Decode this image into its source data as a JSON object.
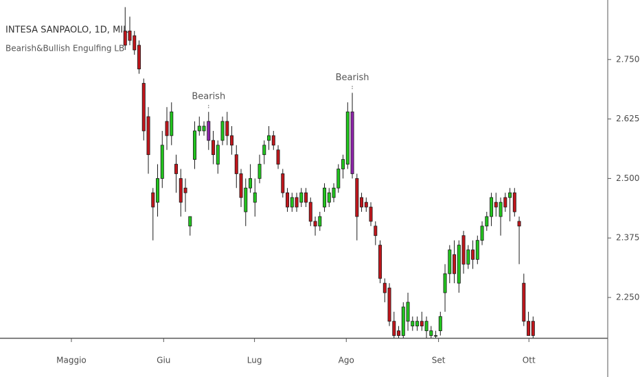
{
  "chart_data": {
    "type": "candlestick",
    "title": "INTESA SANPAOLO, 1D, MIL",
    "subtitle": "Bearish&Bullish Engulfing LB",
    "x": [
      0,
      1,
      2,
      3,
      4,
      5,
      6,
      7,
      8,
      9,
      10,
      11,
      12,
      13,
      14,
      15,
      16,
      17,
      18,
      19,
      20,
      21,
      22,
      23,
      24,
      25,
      26,
      27,
      28,
      29,
      30,
      31,
      32,
      33,
      34,
      35,
      36,
      37,
      38,
      39,
      40,
      41,
      42,
      43,
      44,
      45,
      46,
      47,
      48,
      49,
      50,
      51,
      52,
      53,
      54,
      55,
      56,
      57,
      58,
      59,
      60,
      61,
      62,
      63,
      64,
      65,
      66,
      67,
      68,
      69,
      70,
      71,
      72,
      73,
      74,
      75,
      76,
      77,
      78,
      79,
      80,
      81,
      82,
      83,
      84,
      85,
      86,
      87,
      88
    ],
    "open": [
      2.81,
      2.81,
      2.8,
      2.78,
      2.7,
      2.63,
      2.47,
      2.45,
      2.5,
      2.62,
      2.59,
      2.53,
      2.5,
      2.48,
      2.4,
      2.54,
      2.6,
      2.6,
      2.62,
      2.58,
      2.53,
      2.58,
      2.62,
      2.59,
      2.55,
      2.51,
      2.43,
      2.48,
      2.45,
      2.5,
      2.55,
      2.58,
      2.59,
      2.56,
      2.51,
      2.47,
      2.44,
      2.46,
      2.45,
      2.47,
      2.45,
      2.41,
      2.4,
      2.44,
      2.45,
      2.46,
      2.48,
      2.52,
      2.53,
      2.64,
      2.5,
      2.46,
      2.45,
      2.44,
      2.4,
      2.36,
      2.28,
      2.27,
      2.2,
      2.18,
      2.17,
      2.2,
      2.19,
      2.19,
      2.2,
      2.18,
      2.17,
      2.17,
      2.18,
      2.26,
      2.3,
      2.34,
      2.28,
      2.38,
      2.32,
      2.35,
      2.33,
      2.37,
      2.4,
      2.42,
      2.45,
      2.42,
      2.46,
      2.46,
      2.47,
      2.41,
      2.28,
      2.2,
      2.2
    ],
    "high": [
      2.86,
      2.84,
      2.81,
      2.79,
      2.71,
      2.65,
      2.48,
      2.53,
      2.6,
      2.65,
      2.66,
      2.55,
      2.52,
      2.5,
      2.42,
      2.62,
      2.63,
      2.62,
      2.64,
      2.6,
      2.58,
      2.63,
      2.64,
      2.61,
      2.57,
      2.52,
      2.5,
      2.53,
      2.5,
      2.55,
      2.58,
      2.61,
      2.6,
      2.57,
      2.52,
      2.48,
      2.47,
      2.47,
      2.48,
      2.48,
      2.46,
      2.42,
      2.43,
      2.49,
      2.48,
      2.49,
      2.53,
      2.55,
      2.66,
      2.68,
      2.51,
      2.47,
      2.46,
      2.45,
      2.41,
      2.37,
      2.29,
      2.28,
      2.22,
      2.19,
      2.24,
      2.26,
      2.21,
      2.21,
      2.22,
      2.21,
      2.19,
      2.18,
      2.22,
      2.32,
      2.36,
      2.37,
      2.37,
      2.39,
      2.36,
      2.37,
      2.38,
      2.41,
      2.43,
      2.47,
      2.47,
      2.46,
      2.47,
      2.48,
      2.48,
      2.42,
      2.3,
      2.22,
      2.21
    ],
    "low": [
      2.77,
      2.78,
      2.76,
      2.72,
      2.58,
      2.51,
      2.37,
      2.42,
      2.48,
      2.56,
      2.57,
      2.47,
      2.42,
      2.43,
      2.38,
      2.52,
      2.59,
      2.59,
      2.56,
      2.53,
      2.51,
      2.57,
      2.57,
      2.55,
      2.48,
      2.44,
      2.4,
      2.47,
      2.42,
      2.49,
      2.53,
      2.56,
      2.56,
      2.52,
      2.46,
      2.43,
      2.43,
      2.43,
      2.44,
      2.44,
      2.4,
      2.38,
      2.39,
      2.43,
      2.44,
      2.45,
      2.47,
      2.5,
      2.52,
      2.5,
      2.37,
      2.43,
      2.43,
      2.4,
      2.36,
      2.28,
      2.24,
      2.19,
      2.16,
      2.16,
      2.16,
      2.18,
      2.18,
      2.18,
      2.18,
      2.16,
      2.16,
      2.16,
      2.17,
      2.22,
      2.28,
      2.28,
      2.26,
      2.3,
      2.31,
      2.31,
      2.32,
      2.36,
      2.39,
      2.4,
      2.42,
      2.38,
      2.43,
      2.41,
      2.42,
      2.32,
      2.19,
      2.17,
      2.16
    ],
    "close": [
      2.78,
      2.79,
      2.77,
      2.73,
      2.6,
      2.55,
      2.44,
      2.5,
      2.57,
      2.59,
      2.64,
      2.51,
      2.45,
      2.47,
      2.42,
      2.6,
      2.61,
      2.61,
      2.58,
      2.55,
      2.57,
      2.62,
      2.59,
      2.57,
      2.51,
      2.46,
      2.48,
      2.5,
      2.47,
      2.53,
      2.57,
      2.59,
      2.57,
      2.53,
      2.47,
      2.44,
      2.46,
      2.44,
      2.47,
      2.45,
      2.41,
      2.4,
      2.42,
      2.48,
      2.47,
      2.48,
      2.52,
      2.54,
      2.64,
      2.51,
      2.42,
      2.44,
      2.44,
      2.41,
      2.38,
      2.29,
      2.26,
      2.2,
      2.17,
      2.17,
      2.23,
      2.24,
      2.2,
      2.2,
      2.19,
      2.2,
      2.18,
      2.17,
      2.21,
      2.3,
      2.35,
      2.3,
      2.36,
      2.32,
      2.35,
      2.33,
      2.37,
      2.4,
      2.42,
      2.46,
      2.44,
      2.45,
      2.44,
      2.47,
      2.43,
      2.4,
      2.2,
      2.17,
      2.17
    ],
    "xlim": [
      -27.0,
      104.1
    ],
    "xticks": [
      {
        "value": -11.6,
        "label": "Maggio"
      },
      {
        "value": 8.3,
        "label": "Giu"
      },
      {
        "value": 27.9,
        "label": "Lug"
      },
      {
        "value": 47.7,
        "label": "Ago"
      },
      {
        "value": 67.6,
        "label": "Set"
      },
      {
        "value": 87.1,
        "label": "Ott"
      }
    ],
    "ylim": [
      2.165,
      2.875
    ],
    "yticks": [
      {
        "value": 2.25,
        "label": "2.2500"
      },
      {
        "value": 2.375,
        "label": "2.3750"
      },
      {
        "value": 2.5,
        "label": "2.5000"
      },
      {
        "value": 2.625,
        "label": "2.6250"
      },
      {
        "value": 2.75,
        "label": "2.7500"
      }
    ],
    "up_color": "#22c41e",
    "down_color": "#c0161c",
    "highlight_color": "#8e24aa",
    "annotations": [
      {
        "text": "Bearish",
        "x": 18
      },
      {
        "text": "Bearish",
        "x": 49
      }
    ]
  }
}
